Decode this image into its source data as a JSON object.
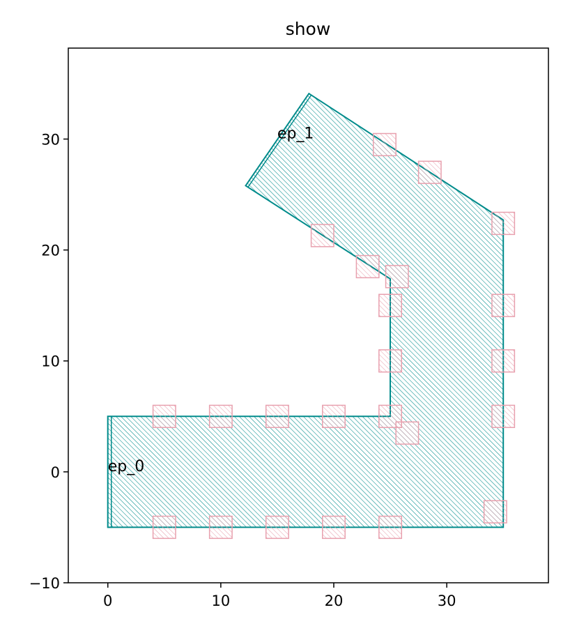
{
  "chart_data": {
    "type": "shape-plot",
    "title": "show",
    "xlim": [
      -3.5,
      39
    ],
    "ylim": [
      -10,
      38.2
    ],
    "xticks": [
      0,
      10,
      20,
      30
    ],
    "yticks": [
      -10,
      0,
      10,
      20,
      30
    ],
    "grid": false,
    "colors": {
      "path": "#008b8b",
      "markers": "#e8a0ae"
    },
    "path_polygon": [
      [
        0,
        -5
      ],
      [
        35,
        -5
      ],
      [
        35,
        22.7
      ],
      [
        17.8,
        34.1
      ],
      [
        12.2,
        25.8
      ],
      [
        25,
        17.4
      ],
      [
        25,
        5
      ],
      [
        0,
        5
      ]
    ],
    "start_edge": [
      [
        0,
        -5
      ],
      [
        0,
        5
      ]
    ],
    "end_edge": [
      [
        12.2,
        25.8
      ],
      [
        17.8,
        34.1
      ]
    ],
    "marker_size": 2,
    "markers": [
      [
        5,
        5
      ],
      [
        10,
        5
      ],
      [
        15,
        5
      ],
      [
        20,
        5
      ],
      [
        25,
        5
      ],
      [
        5,
        -5
      ],
      [
        10,
        -5
      ],
      [
        15,
        -5
      ],
      [
        20,
        -5
      ],
      [
        25,
        -5
      ],
      [
        35,
        5
      ],
      [
        35,
        10
      ],
      [
        35,
        15
      ],
      [
        35,
        22.4
      ],
      [
        34.3,
        -3.6
      ],
      [
        25,
        10
      ],
      [
        25,
        15
      ],
      [
        25.6,
        17.6
      ],
      [
        26.5,
        3.5
      ],
      [
        23,
        18.5
      ],
      [
        19,
        21.3
      ],
      [
        28.5,
        27
      ],
      [
        24.5,
        29.5
      ]
    ],
    "annotations": [
      {
        "text": "ep_0",
        "x": 0,
        "y": 0
      },
      {
        "text": "ep_1",
        "x": 15,
        "y": 30
      }
    ]
  }
}
